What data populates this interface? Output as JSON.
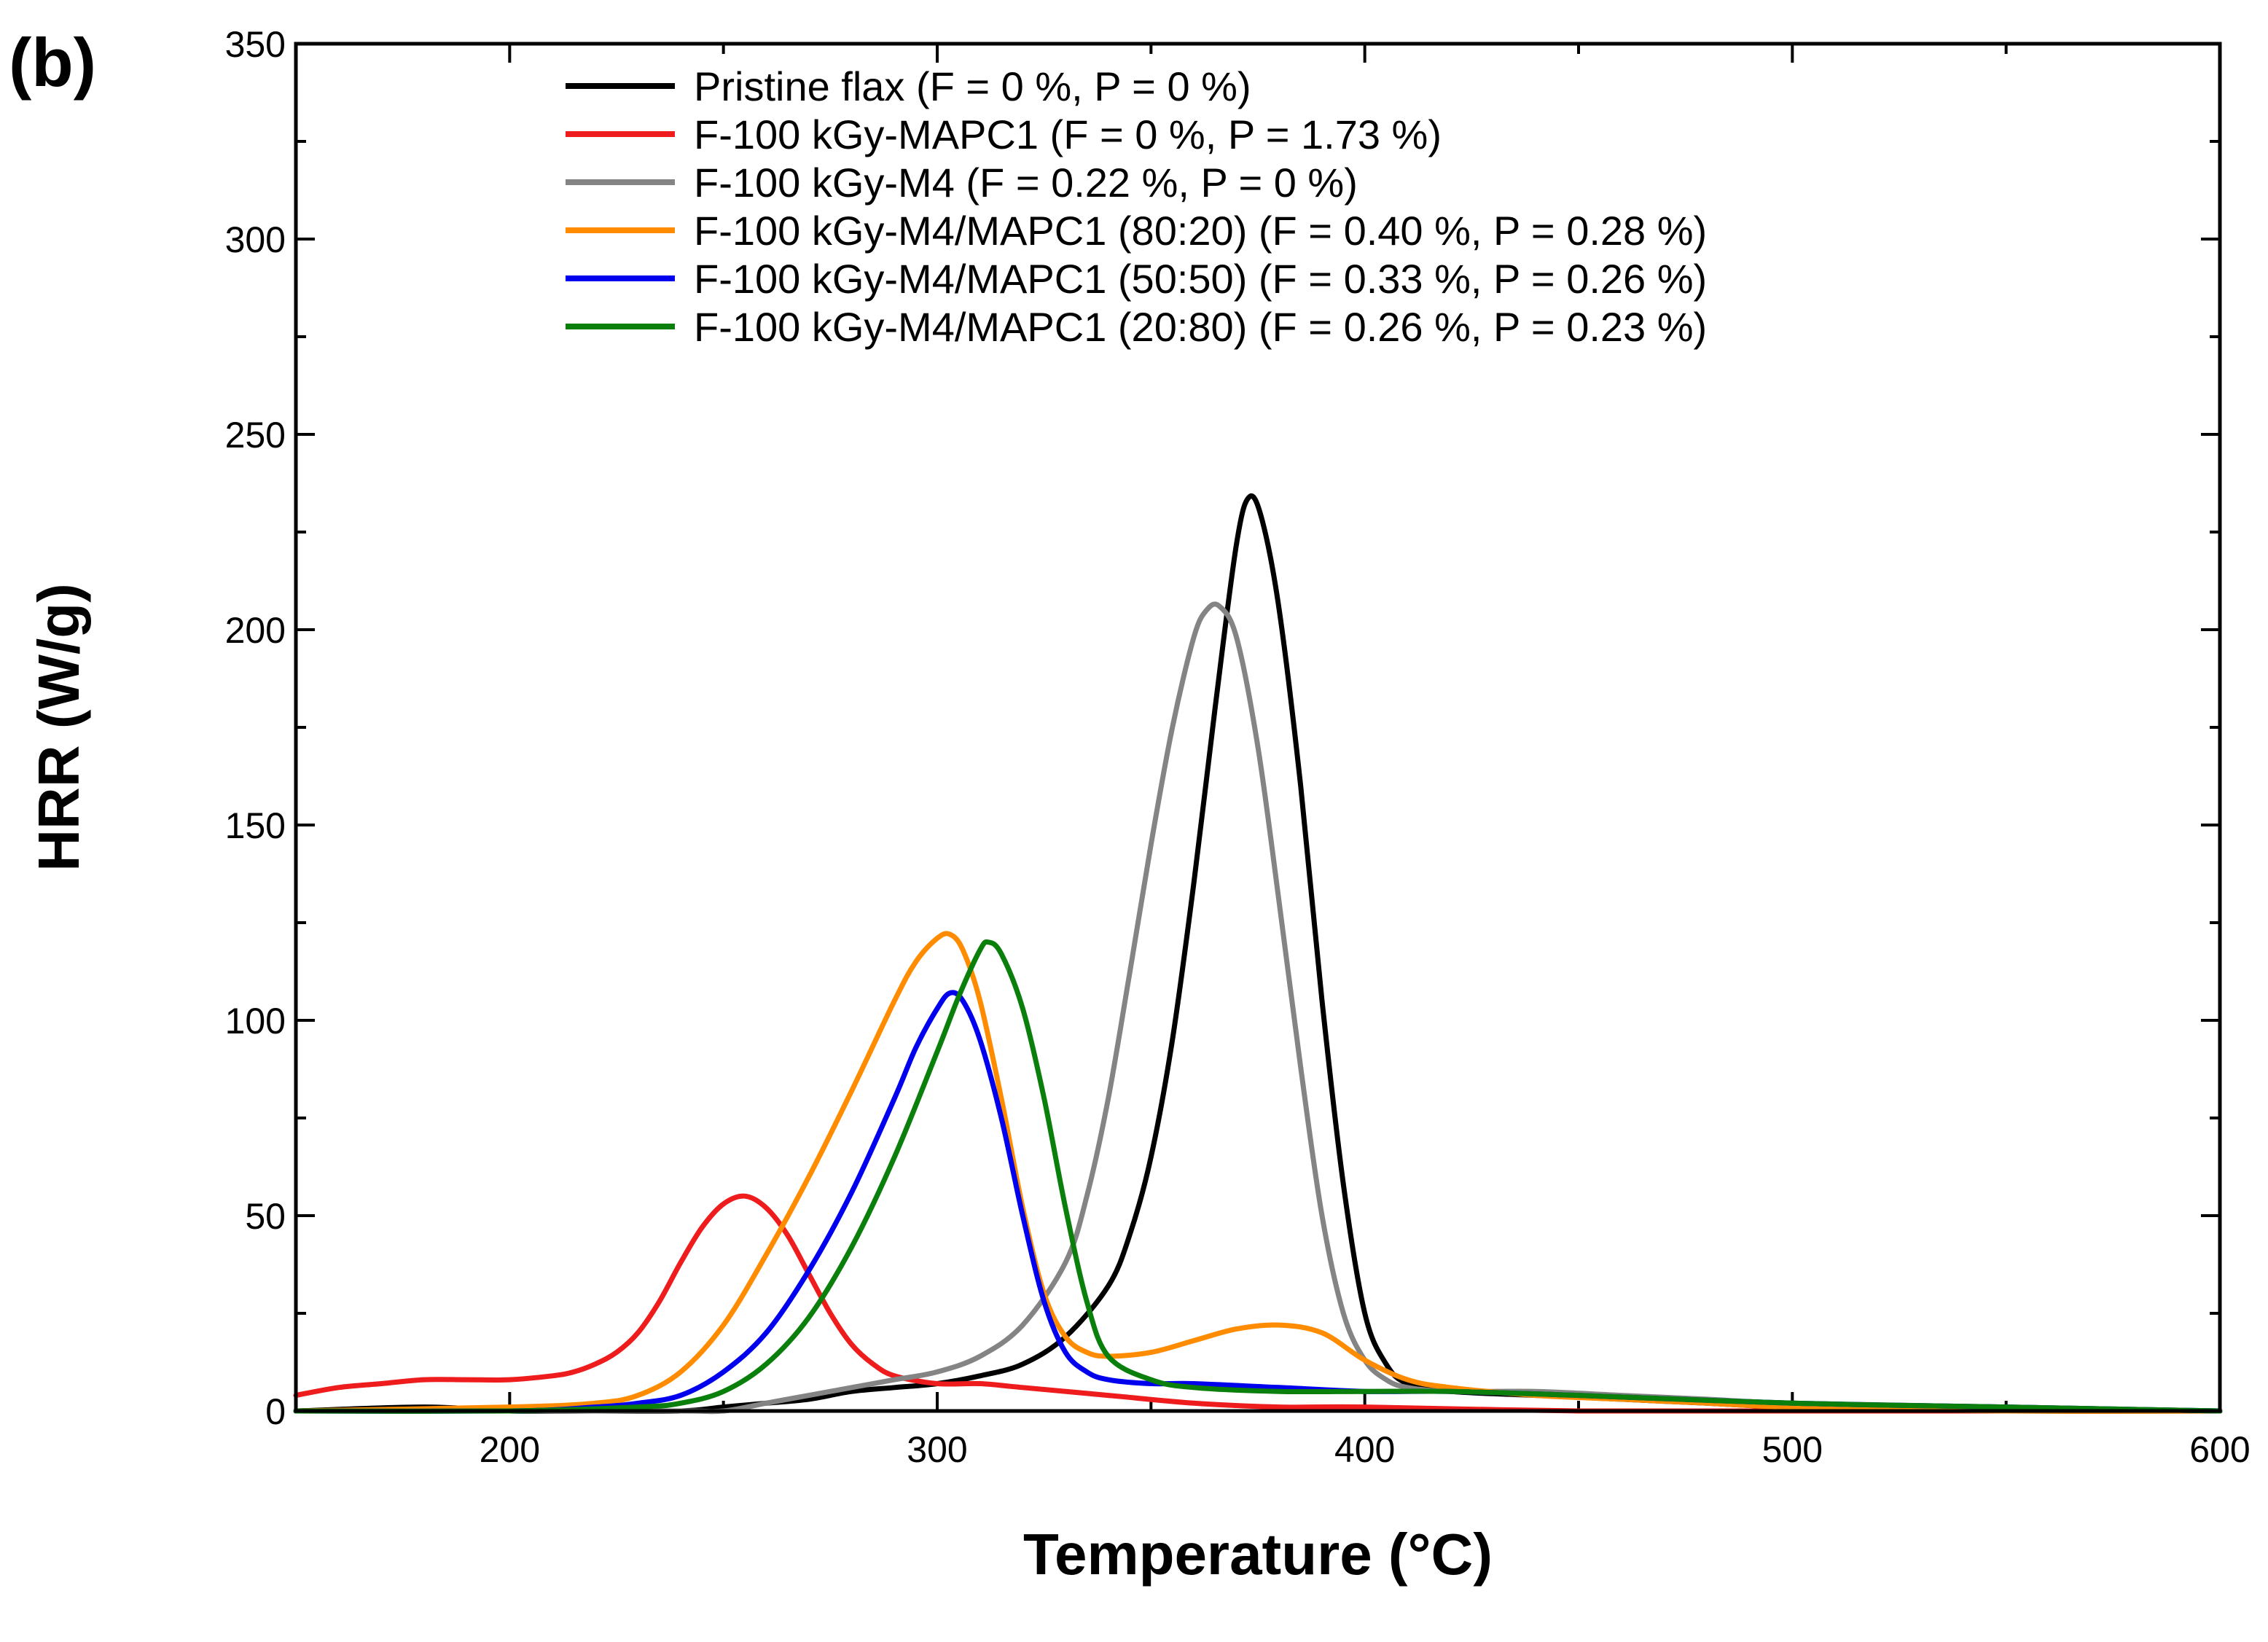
{
  "chart_data": {
    "type": "line",
    "panel_label": "(b)",
    "xlabel": "Temperature (°C)",
    "ylabel": "HRR (W/g)",
    "xlim": [
      150,
      600
    ],
    "ylim": [
      0,
      350
    ],
    "x_ticks": [
      200,
      300,
      400,
      500,
      600
    ],
    "y_ticks": [
      0,
      50,
      100,
      150,
      200,
      250,
      300,
      350
    ],
    "x_tick_labels": [
      "200",
      "300",
      "400",
      "500",
      "600"
    ],
    "y_tick_labels": [
      "0",
      "50",
      "100",
      "150",
      "200",
      "250",
      "300",
      "350"
    ],
    "legend_position": "top-center",
    "series": [
      {
        "name": "Pristine flax (F = 0 %, P = 0 %)",
        "color": "#000000",
        "x": [
          150,
          180,
          200,
          220,
          240,
          250,
          260,
          270,
          280,
          290,
          300,
          310,
          320,
          330,
          340,
          345,
          350,
          355,
          360,
          365,
          370,
          373,
          376,
          380,
          385,
          390,
          395,
          400,
          405,
          410,
          420,
          440,
          460,
          480,
          500,
          550,
          600
        ],
        "y": [
          0,
          1,
          0,
          0,
          0,
          1,
          2,
          3,
          5,
          6,
          7,
          9,
          12,
          19,
          32,
          45,
          65,
          95,
          135,
          180,
          222,
          234,
          228,
          205,
          160,
          105,
          58,
          25,
          12,
          7,
          5,
          4,
          3,
          2,
          1,
          0,
          0
        ]
      },
      {
        "name": "F-100 kGy-MAPC1 (F = 0 %, P = 1.73 %)",
        "color": "#ee1c1c",
        "x": [
          150,
          160,
          170,
          180,
          190,
          200,
          210,
          215,
          220,
          225,
          230,
          235,
          240,
          245,
          250,
          255,
          260,
          265,
          270,
          275,
          280,
          285,
          290,
          300,
          310,
          320,
          340,
          360,
          380,
          400,
          450,
          500,
          550,
          600
        ],
        "y": [
          4,
          6,
          7,
          8,
          8,
          8,
          9,
          10,
          12,
          15,
          20,
          28,
          38,
          47,
          53,
          55,
          52,
          45,
          35,
          25,
          17,
          12,
          9,
          7,
          7,
          6,
          4,
          2,
          1,
          1,
          0,
          0,
          0,
          0
        ]
      },
      {
        "name": "F-100 kGy-M4 (F = 0.22 %, P = 0 %)",
        "color": "#848484",
        "x": [
          150,
          200,
          240,
          250,
          260,
          270,
          280,
          290,
          300,
          310,
          320,
          330,
          335,
          340,
          345,
          350,
          355,
          360,
          363,
          366,
          370,
          375,
          380,
          385,
          390,
          395,
          400,
          405,
          410,
          420,
          440,
          460,
          480,
          500,
          550,
          600
        ],
        "y": [
          0,
          0,
          0,
          0,
          2,
          4,
          6,
          8,
          10,
          14,
          22,
          38,
          55,
          80,
          112,
          145,
          175,
          198,
          205,
          206,
          198,
          170,
          130,
          88,
          50,
          25,
          13,
          8,
          6,
          5,
          5,
          4,
          3,
          2,
          1,
          0
        ]
      },
      {
        "name": "F-100 kGy-M4/MAPC1 (80:20) (F =  0.40 %, P = 0.28 %)",
        "color": "#ff8c00",
        "x": [
          150,
          200,
          220,
          230,
          240,
          250,
          260,
          270,
          280,
          290,
          295,
          300,
          303,
          306,
          310,
          315,
          320,
          325,
          330,
          335,
          340,
          350,
          360,
          370,
          380,
          390,
          400,
          410,
          420,
          440,
          460,
          480,
          500,
          550,
          600
        ],
        "y": [
          0,
          1,
          2,
          4,
          10,
          22,
          40,
          60,
          82,
          105,
          115,
          121,
          122,
          118,
          105,
          80,
          52,
          30,
          19,
          15,
          14,
          15,
          18,
          21,
          22,
          20,
          13,
          8,
          6,
          4,
          3,
          2,
          1,
          0,
          0
        ]
      },
      {
        "name": "F-100 kGy-M4/MAPC1 (50:50) (F =  0.33 %, P = 0.26 %)",
        "color": "#0000ee",
        "x": [
          150,
          200,
          220,
          230,
          240,
          250,
          260,
          270,
          280,
          290,
          295,
          300,
          303,
          306,
          310,
          315,
          320,
          325,
          330,
          335,
          340,
          350,
          360,
          380,
          400,
          420,
          450,
          500,
          550,
          600
        ],
        "y": [
          0,
          0,
          1,
          2,
          4,
          10,
          20,
          36,
          56,
          80,
          93,
          103,
          107,
          105,
          95,
          75,
          50,
          28,
          15,
          10,
          8,
          7,
          7,
          6,
          5,
          5,
          4,
          2,
          1,
          0
        ]
      },
      {
        "name": "F-100 kGy-M4/MAPC1 (20:80) (F =  0.26 %, P = 0.23 %)",
        "color": "#0b7f0b",
        "x": [
          150,
          200,
          230,
          240,
          250,
          260,
          270,
          280,
          290,
          300,
          305,
          310,
          312,
          315,
          320,
          325,
          330,
          335,
          340,
          350,
          360,
          380,
          400,
          420,
          450,
          500,
          550,
          600
        ],
        "y": [
          0,
          0,
          1,
          2,
          5,
          12,
          24,
          42,
          65,
          92,
          106,
          118,
          120,
          117,
          103,
          80,
          52,
          28,
          14,
          8,
          6,
          5,
          5,
          5,
          4,
          2,
          1,
          0
        ]
      }
    ]
  }
}
